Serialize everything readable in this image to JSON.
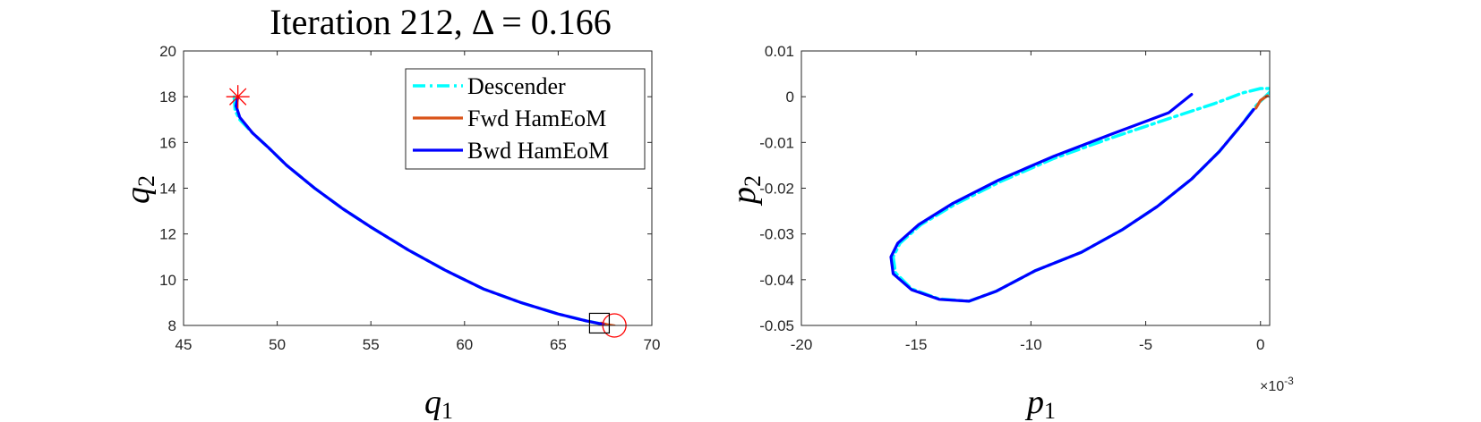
{
  "chart_data": [
    {
      "type": "line",
      "title": "Iteration 212, Δ = 0.166",
      "xlabel": "q",
      "xlabel_sub": "1",
      "ylabel": "q",
      "ylabel_sub": "2",
      "xlim": [
        45,
        70
      ],
      "ylim": [
        8,
        20
      ],
      "xticks": [
        45,
        50,
        55,
        60,
        65,
        70
      ],
      "yticks": [
        8,
        10,
        12,
        14,
        16,
        18,
        20
      ],
      "legend_position": "top-right",
      "series": [
        {
          "name": "Descender",
          "color": "#00FFFF",
          "style": "dash-dot",
          "points": [
            [
              47.7,
              18.0
            ],
            [
              47.75,
              17.4
            ],
            [
              48.0,
              17.0
            ],
            [
              48.7,
              16.4
            ],
            [
              49.5,
              15.8
            ],
            [
              50.5,
              15.0
            ],
            [
              52.0,
              14.0
            ],
            [
              53.5,
              13.1
            ],
            [
              55.0,
              12.3
            ],
            [
              57.0,
              11.3
            ],
            [
              59.0,
              10.4
            ],
            [
              61.0,
              9.6
            ],
            [
              63.0,
              9.0
            ],
            [
              65.0,
              8.5
            ],
            [
              66.5,
              8.2
            ],
            [
              67.4,
              8.05
            ]
          ]
        },
        {
          "name": "Fwd HamEoM",
          "color": "#D95319",
          "style": "solid",
          "points": [
            [
              67.3,
              8.1
            ],
            [
              67.7,
              8.02
            ],
            [
              68.0,
              7.98
            ]
          ]
        },
        {
          "name": "Bwd HamEoM",
          "color": "#0000FF",
          "style": "solid",
          "points": [
            [
              47.9,
              18.0
            ],
            [
              47.8,
              17.6
            ],
            [
              48.0,
              17.1
            ],
            [
              48.7,
              16.4
            ],
            [
              49.5,
              15.8
            ],
            [
              50.5,
              15.0
            ],
            [
              52.0,
              14.0
            ],
            [
              53.5,
              13.1
            ],
            [
              55.0,
              12.3
            ],
            [
              57.0,
              11.3
            ],
            [
              59.0,
              10.4
            ],
            [
              61.0,
              9.6
            ],
            [
              63.0,
              9.0
            ],
            [
              65.0,
              8.5
            ],
            [
              66.5,
              8.2
            ],
            [
              67.4,
              8.05
            ]
          ]
        }
      ],
      "markers": [
        {
          "shape": "star",
          "color": "#FF0000",
          "x": 47.9,
          "y": 18.0
        },
        {
          "shape": "circle",
          "color": "#FF0000",
          "x": 68.0,
          "y": 8.0
        },
        {
          "shape": "square",
          "color": "#000000",
          "x": 67.2,
          "y": 8.1
        }
      ]
    },
    {
      "type": "line",
      "xlabel": "p",
      "xlabel_sub": "1",
      "ylabel": "p",
      "ylabel_sub": "2",
      "xlim": [
        -0.02,
        0.0004
      ],
      "ylim": [
        -0.05,
        0.01
      ],
      "xticks": [
        -0.02,
        -0.015,
        -0.01,
        -0.005,
        0
      ],
      "xtick_labels": [
        "-20",
        "-15",
        "-10",
        "-5",
        "0"
      ],
      "x_exponent": "×10",
      "x_exponent_power": "-3",
      "yticks": [
        -0.05,
        -0.04,
        -0.03,
        -0.02,
        -0.01,
        0,
        0.01
      ],
      "ytick_labels": [
        "-0.05",
        "-0.04",
        "-0.03",
        "-0.02",
        "-0.01",
        "0",
        "0.01"
      ],
      "series": [
        {
          "name": "Descender",
          "color": "#00FFFF",
          "style": "dash-dot",
          "points": [
            [
              0.0004,
              0.001
            ],
            [
              -0.0002,
              -0.002
            ],
            [
              -0.0008,
              -0.006
            ],
            [
              -0.0018,
              -0.012
            ],
            [
              -0.003,
              -0.018
            ],
            [
              -0.0045,
              -0.024
            ],
            [
              -0.006,
              -0.029
            ],
            [
              -0.0078,
              -0.034
            ],
            [
              -0.0098,
              -0.038
            ],
            [
              -0.0115,
              -0.0425
            ],
            [
              -0.0127,
              -0.0447
            ],
            [
              -0.014,
              -0.0442
            ],
            [
              -0.0152,
              -0.042
            ],
            [
              -0.0159,
              -0.0385
            ],
            [
              -0.016,
              -0.035
            ],
            [
              -0.0157,
              -0.032
            ],
            [
              -0.0148,
              -0.028
            ],
            [
              -0.0133,
              -0.0235
            ],
            [
              -0.0113,
              -0.0185
            ],
            [
              -0.009,
              -0.0135
            ],
            [
              -0.0065,
              -0.009
            ],
            [
              -0.004,
              -0.0048
            ],
            [
              -0.002,
              -0.0015
            ],
            [
              -0.0008,
              0.0008
            ],
            [
              0.0,
              0.0018
            ],
            [
              0.0004,
              0.0018
            ]
          ]
        },
        {
          "name": "Fwd HamEoM",
          "color": "#D95319",
          "style": "solid",
          "points": [
            [
              -0.0002,
              -0.0025
            ],
            [
              0.0,
              -0.0008
            ],
            [
              0.0003,
              0.0002
            ]
          ]
        },
        {
          "name": "Bwd HamEoM",
          "color": "#0000FF",
          "style": "solid",
          "points": [
            [
              -0.0003,
              -0.0028
            ],
            [
              -0.0008,
              -0.006
            ],
            [
              -0.0018,
              -0.012
            ],
            [
              -0.003,
              -0.018
            ],
            [
              -0.0045,
              -0.024
            ],
            [
              -0.006,
              -0.029
            ],
            [
              -0.0078,
              -0.034
            ],
            [
              -0.0098,
              -0.038
            ],
            [
              -0.0115,
              -0.0425
            ],
            [
              -0.0127,
              -0.0447
            ],
            [
              -0.014,
              -0.0443
            ],
            [
              -0.0152,
              -0.0422
            ],
            [
              -0.016,
              -0.0387
            ],
            [
              -0.0161,
              -0.035
            ],
            [
              -0.0158,
              -0.032
            ],
            [
              -0.0149,
              -0.028
            ],
            [
              -0.0134,
              -0.0233
            ],
            [
              -0.0114,
              -0.0182
            ],
            [
              -0.009,
              -0.013
            ],
            [
              -0.0065,
              -0.0082
            ],
            [
              -0.004,
              -0.0035
            ],
            [
              -0.003,
              0.0005
            ]
          ]
        }
      ]
    }
  ]
}
